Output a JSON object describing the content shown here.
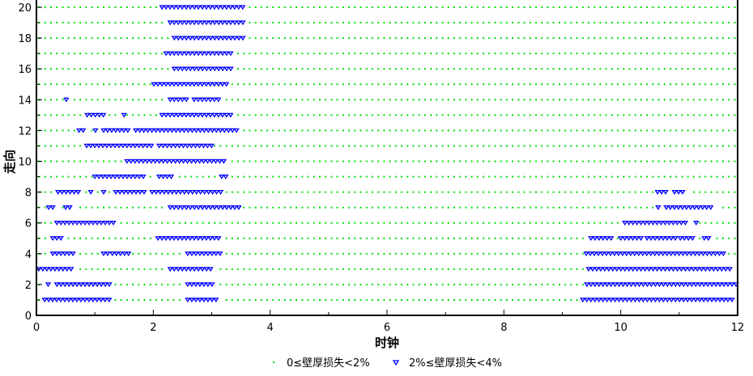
{
  "chart_data": {
    "type": "scatter",
    "title": "",
    "xlabel": "时钟",
    "ylabel": "走向",
    "xlim": [
      0,
      12
    ],
    "ylim": [
      0,
      20
    ],
    "xticks": [
      0,
      2,
      4,
      6,
      8,
      10,
      12
    ],
    "yticks": [
      0,
      2,
      4,
      6,
      8,
      10,
      12,
      14,
      16,
      18,
      20
    ],
    "grid": false,
    "legend_position": "bottom",
    "series": [
      {
        "name": "0≤壁厚损失<2%",
        "marker": "dot",
        "color": "#00dd00",
        "rows": [
          1,
          2,
          3,
          4,
          5,
          6,
          7,
          8,
          9,
          10,
          11,
          12,
          13,
          14,
          15,
          16,
          17,
          18,
          19,
          20
        ],
        "x_range": [
          0,
          12
        ]
      },
      {
        "name": "2%≤壁厚损失<4%",
        "marker": "triangle-down",
        "color": "#0000ff",
        "segments": [
          {
            "y": 1,
            "x": [
              [
                0.14,
                1.27
              ],
              [
                2.59,
                3.12
              ],
              [
                9.35,
                11.92
              ]
            ]
          },
          {
            "y": 2,
            "x": [
              [
                0.2,
                0.25
              ],
              [
                0.35,
                1.27
              ],
              [
                2.59,
                3.06
              ],
              [
                9.42,
                11.99
              ]
            ]
          },
          {
            "y": 3,
            "x": [
              [
                0.04,
                0.65
              ],
              [
                2.29,
                3.01
              ],
              [
                9.45,
                11.92
              ]
            ]
          },
          {
            "y": 4,
            "x": [
              [
                0.28,
                0.67
              ],
              [
                1.15,
                1.22
              ],
              [
                1.3,
                1.59
              ],
              [
                2.59,
                3.16
              ],
              [
                9.41,
                11.78
              ]
            ]
          },
          {
            "y": 5,
            "x": [
              [
                0.28,
                0.44
              ],
              [
                2.08,
                3.12
              ],
              [
                9.49,
                9.85
              ],
              [
                10.0,
                10.35
              ],
              [
                10.45,
                10.97
              ],
              [
                11.02,
                11.26
              ],
              [
                11.43,
                11.53
              ]
            ]
          },
          {
            "y": 6,
            "x": [
              [
                0.35,
                1.32
              ],
              [
                10.07,
                11.13
              ],
              [
                11.29,
                11.29
              ]
            ]
          },
          {
            "y": 7,
            "x": [
              [
                0.21,
                0.3
              ],
              [
                0.5,
                0.6
              ],
              [
                2.29,
                3.49
              ],
              [
                10.64,
                10.64
              ],
              [
                10.78,
                11.6
              ]
            ]
          },
          {
            "y": 8,
            "x": [
              [
                0.37,
                0.72
              ],
              [
                0.93,
                0.93
              ],
              [
                1.15,
                1.15
              ],
              [
                1.36,
                1.87
              ],
              [
                1.98,
                3.19
              ],
              [
                10.63,
                10.81
              ],
              [
                10.92,
                11.11
              ]
            ]
          },
          {
            "y": 9,
            "x": [
              [
                1.0,
                1.85
              ],
              [
                2.1,
                2.35
              ],
              [
                3.17,
                3.27
              ]
            ]
          },
          {
            "y": 10,
            "x": [
              [
                1.55,
                3.27
              ]
            ]
          },
          {
            "y": 11,
            "x": [
              [
                0.86,
                2.0
              ],
              [
                2.1,
                3.0
              ]
            ]
          },
          {
            "y": 12,
            "x": [
              [
                0.73,
                0.83
              ],
              [
                1.01,
                1.01
              ],
              [
                1.15,
                1.59
              ],
              [
                1.7,
                3.48
              ]
            ]
          },
          {
            "y": 13,
            "x": [
              [
                0.87,
                1.15
              ],
              [
                1.5,
                1.5
              ],
              [
                2.15,
                3.39
              ]
            ]
          },
          {
            "y": 14,
            "x": [
              [
                0.51,
                0.51
              ],
              [
                2.29,
                2.59
              ],
              [
                2.7,
                3.12
              ]
            ]
          },
          {
            "y": 15,
            "x": [
              [
                2.01,
                3.26
              ]
            ]
          },
          {
            "y": 16,
            "x": [
              [
                2.36,
                3.33
              ]
            ]
          },
          {
            "y": 17,
            "x": [
              [
                2.22,
                3.39
              ]
            ]
          },
          {
            "y": 18,
            "x": [
              [
                2.36,
                3.6
              ]
            ]
          },
          {
            "y": 19,
            "x": [
              [
                2.29,
                3.6
              ]
            ]
          },
          {
            "y": 20,
            "x": [
              [
                2.15,
                3.53
              ]
            ]
          }
        ]
      }
    ]
  }
}
